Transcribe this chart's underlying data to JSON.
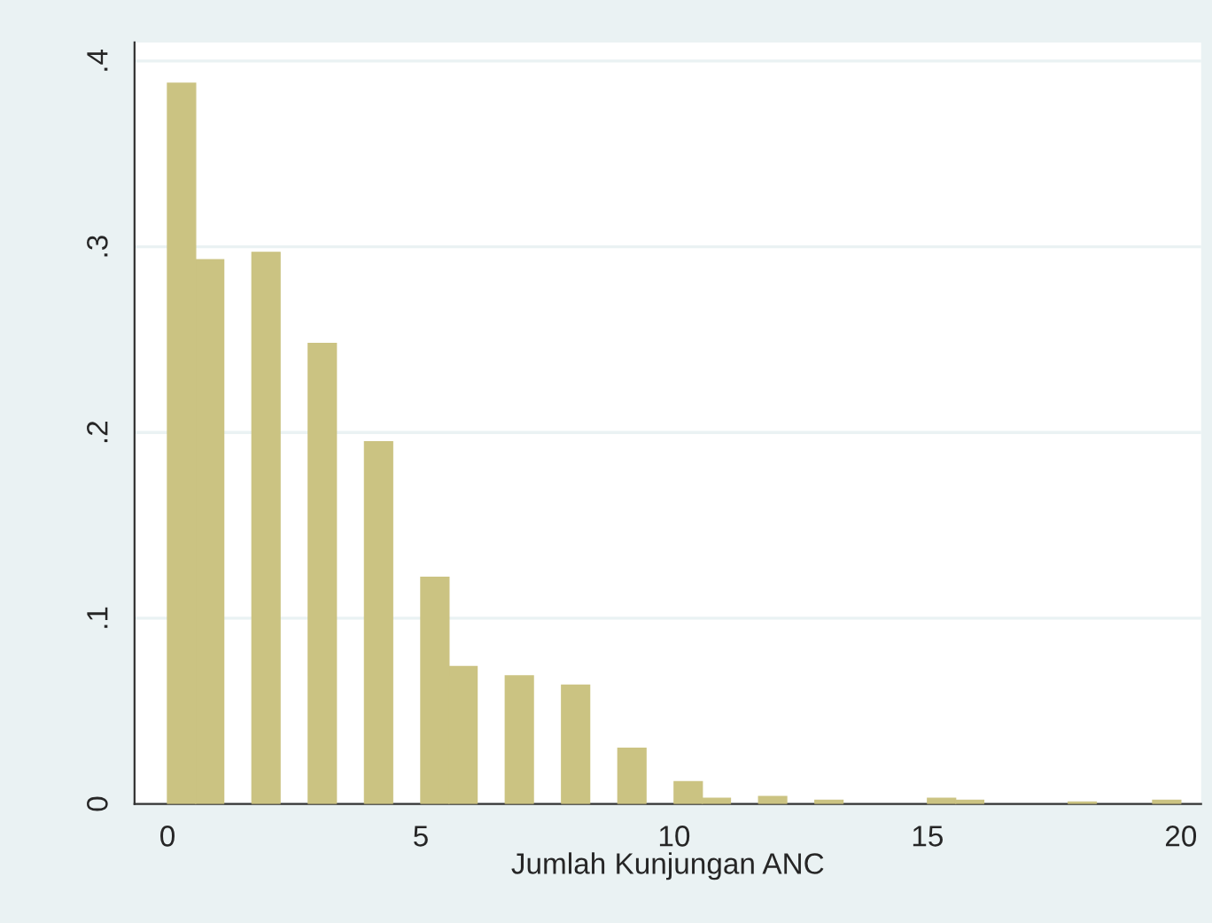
{
  "chart_data": {
    "type": "histogram",
    "xlabel": "Jumlah Kunjungan ANC",
    "bins": [
      0,
      0.556,
      1.111,
      1.667,
      2.222,
      2.778,
      3.333,
      3.889,
      4.444,
      5,
      5.556,
      6.111,
      6.667,
      7.222,
      7.778,
      8.333,
      8.889,
      9.444,
      10,
      10.556,
      11.111,
      11.667,
      12.222,
      12.778,
      13.333,
      13.889,
      14.444,
      15,
      15.556,
      16.111,
      16.667,
      17.222,
      17.778,
      18.333,
      18.889,
      19.444,
      20
    ],
    "values": [
      0.388,
      0.293,
      0,
      0.297,
      0,
      0.248,
      0,
      0.195,
      0,
      0.122,
      0.074,
      0,
      0.069,
      0,
      0.064,
      0,
      0.03,
      0,
      0.012,
      0.003,
      0,
      0.004,
      0,
      0.002,
      0,
      0,
      0,
      0.003,
      0.002,
      0,
      0,
      0,
      0.001,
      0,
      0,
      0.002
    ],
    "color": "#cbc382",
    "xlim": [
      -0.65,
      20.4
    ],
    "xticks": [
      0,
      5,
      10,
      15,
      20
    ],
    "ylim": [
      0,
      0.41
    ],
    "yticks": [
      0,
      {
        "value": 0.1,
        "label": ".1"
      },
      {
        "value": 0.2,
        "label": ".2"
      },
      {
        "value": 0.3,
        "label": ".3"
      },
      {
        "value": 0.4,
        "label": ".4"
      }
    ],
    "grid": "y"
  }
}
